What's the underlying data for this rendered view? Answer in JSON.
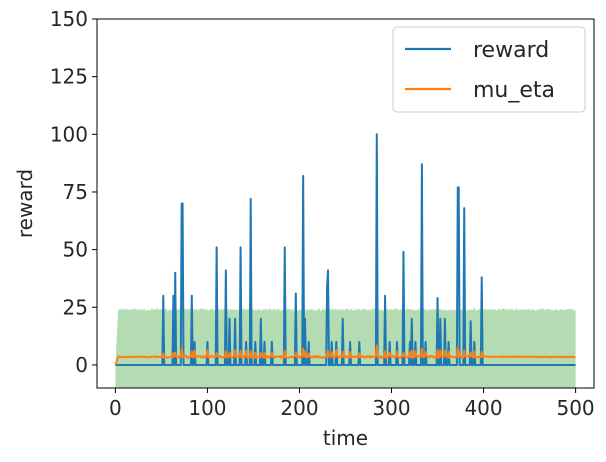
{
  "chart_data": {
    "type": "line",
    "xlabel": "time",
    "ylabel": "reward",
    "xlim": [
      -20,
      520
    ],
    "ylim": [
      -10,
      150
    ],
    "xticks": [
      0,
      100,
      200,
      300,
      400,
      500
    ],
    "yticks": [
      0,
      25,
      50,
      75,
      100,
      125,
      150
    ],
    "legend_position": "top-right",
    "series": [
      {
        "name": "reward",
        "color": "#1f77b4",
        "x_range": [
          0,
          500
        ],
        "baseline": 0,
        "nonzero_from_x": 52,
        "nonzero_until_x": 400,
        "spikes": [
          {
            "x": 52,
            "y": 30
          },
          {
            "x": 63,
            "y": 30
          },
          {
            "x": 65,
            "y": 40
          },
          {
            "x": 72,
            "y": 70
          },
          {
            "x": 73,
            "y": 70
          },
          {
            "x": 83,
            "y": 30
          },
          {
            "x": 86,
            "y": 10
          },
          {
            "x": 100,
            "y": 10
          },
          {
            "x": 110,
            "y": 51
          },
          {
            "x": 120,
            "y": 41
          },
          {
            "x": 124,
            "y": 20
          },
          {
            "x": 130,
            "y": 20
          },
          {
            "x": 136,
            "y": 51
          },
          {
            "x": 142,
            "y": 10
          },
          {
            "x": 147,
            "y": 72
          },
          {
            "x": 152,
            "y": 10
          },
          {
            "x": 158,
            "y": 20
          },
          {
            "x": 162,
            "y": 10
          },
          {
            "x": 170,
            "y": 10
          },
          {
            "x": 184,
            "y": 51
          },
          {
            "x": 196,
            "y": 31
          },
          {
            "x": 204,
            "y": 82
          },
          {
            "x": 206,
            "y": 20
          },
          {
            "x": 210,
            "y": 10
          },
          {
            "x": 230,
            "y": 34
          },
          {
            "x": 231,
            "y": 41
          },
          {
            "x": 235,
            "y": 10
          },
          {
            "x": 240,
            "y": 10
          },
          {
            "x": 247,
            "y": 20
          },
          {
            "x": 255,
            "y": 10
          },
          {
            "x": 265,
            "y": 10
          },
          {
            "x": 284,
            "y": 100
          },
          {
            "x": 293,
            "y": 30
          },
          {
            "x": 298,
            "y": 10
          },
          {
            "x": 306,
            "y": 10
          },
          {
            "x": 313,
            "y": 49
          },
          {
            "x": 320,
            "y": 10
          },
          {
            "x": 322,
            "y": 20
          },
          {
            "x": 326,
            "y": 10
          },
          {
            "x": 333,
            "y": 87
          },
          {
            "x": 337,
            "y": 10
          },
          {
            "x": 350,
            "y": 29
          },
          {
            "x": 353,
            "y": 20
          },
          {
            "x": 358,
            "y": 20
          },
          {
            "x": 362,
            "y": 10
          },
          {
            "x": 372,
            "y": 77
          },
          {
            "x": 373,
            "y": 77
          },
          {
            "x": 379,
            "y": 68
          },
          {
            "x": 386,
            "y": 19
          },
          {
            "x": 390,
            "y": 10
          },
          {
            "x": 398,
            "y": 38
          }
        ]
      },
      {
        "name": "mu_eta",
        "color": "#ff7f0e",
        "x_range": [
          0,
          500
        ],
        "start_value": 0,
        "ramp_to_x": 3,
        "level": 3.5,
        "bumps": [
          {
            "x": 72,
            "y": 7
          },
          {
            "x": 120,
            "y": 6
          },
          {
            "x": 147,
            "y": 6
          },
          {
            "x": 204,
            "y": 7
          },
          {
            "x": 231,
            "y": 6
          },
          {
            "x": 284,
            "y": 8.5
          },
          {
            "x": 333,
            "y": 7
          },
          {
            "x": 372,
            "y": 7.5
          }
        ]
      }
    ],
    "band": {
      "color": "#b3dcb3",
      "x_range": [
        0,
        500
      ],
      "lower": -10,
      "upper": 24,
      "upper_start_ramp_to_x": 3
    }
  },
  "legend": {
    "items": [
      {
        "label": "reward",
        "color": "#1f77b4"
      },
      {
        "label": "mu_eta",
        "color": "#ff7f0e"
      }
    ]
  }
}
